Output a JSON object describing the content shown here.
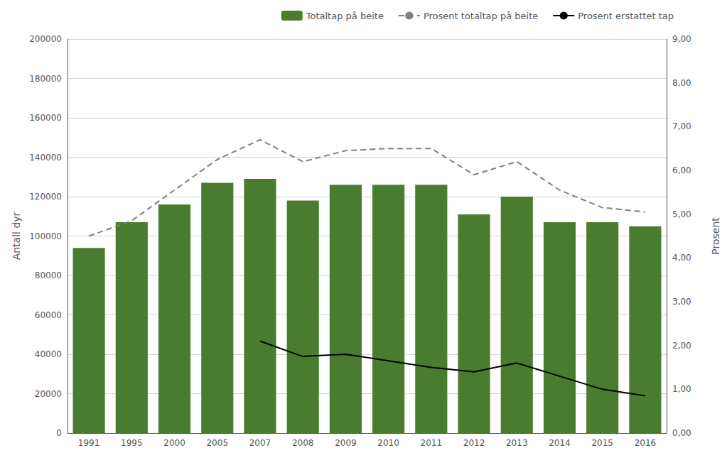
{
  "chart_data": {
    "type": "bar",
    "categories": [
      "1991",
      "1995",
      "2000",
      "2005",
      "2007",
      "2008",
      "2009",
      "2010",
      "2011",
      "2012",
      "2013",
      "2014",
      "2015",
      "2016"
    ],
    "series": [
      {
        "name": "Totaltap på beite",
        "type": "bar",
        "color": "#4a7c2f",
        "values": [
          94000,
          107000,
          116000,
          127000,
          129000,
          118000,
          126000,
          126000,
          126000,
          111000,
          120000,
          107000,
          107000,
          105000
        ]
      },
      {
        "name": "Prosent totaltap på beite",
        "type": "line",
        "axis": "y2",
        "color": "#808080",
        "line_style": "dashed",
        "values": [
          4.5,
          4.85,
          5.55,
          6.25,
          6.7,
          6.2,
          6.45,
          6.5,
          6.5,
          5.9,
          6.2,
          5.55,
          5.15,
          5.05
        ]
      },
      {
        "name": "Prosent erstattet tap",
        "type": "line",
        "axis": "y2",
        "color": "#000000",
        "line_style": "solid",
        "values": [
          null,
          null,
          null,
          null,
          2.1,
          1.75,
          1.8,
          1.65,
          1.5,
          1.4,
          1.6,
          1.3,
          1.0,
          0.85
        ]
      }
    ],
    "ylabel": "Antall dyr",
    "y2label": "Prosent",
    "ylim": [
      0,
      200000
    ],
    "yticks": [
      0,
      20000,
      40000,
      60000,
      80000,
      100000,
      120000,
      140000,
      160000,
      180000,
      200000
    ],
    "y2lim": [
      0.0,
      9.0
    ],
    "y2ticks": [
      {
        "value": 0.0,
        "label": "0,00"
      },
      {
        "value": 1.0,
        "label": "1,00"
      },
      {
        "value": 2.0,
        "label": "2,00"
      },
      {
        "value": 3.0,
        "label": "3,00"
      },
      {
        "value": 4.0,
        "label": "4,00"
      },
      {
        "value": 5.0,
        "label": "5,00"
      },
      {
        "value": 6.0,
        "label": "6,00"
      },
      {
        "value": 7.0,
        "label": "7,00"
      },
      {
        "value": 8.0,
        "label": "8,00"
      },
      {
        "value": 9.0,
        "label": "9,00"
      }
    ],
    "grid": true,
    "legend": "upper right"
  }
}
